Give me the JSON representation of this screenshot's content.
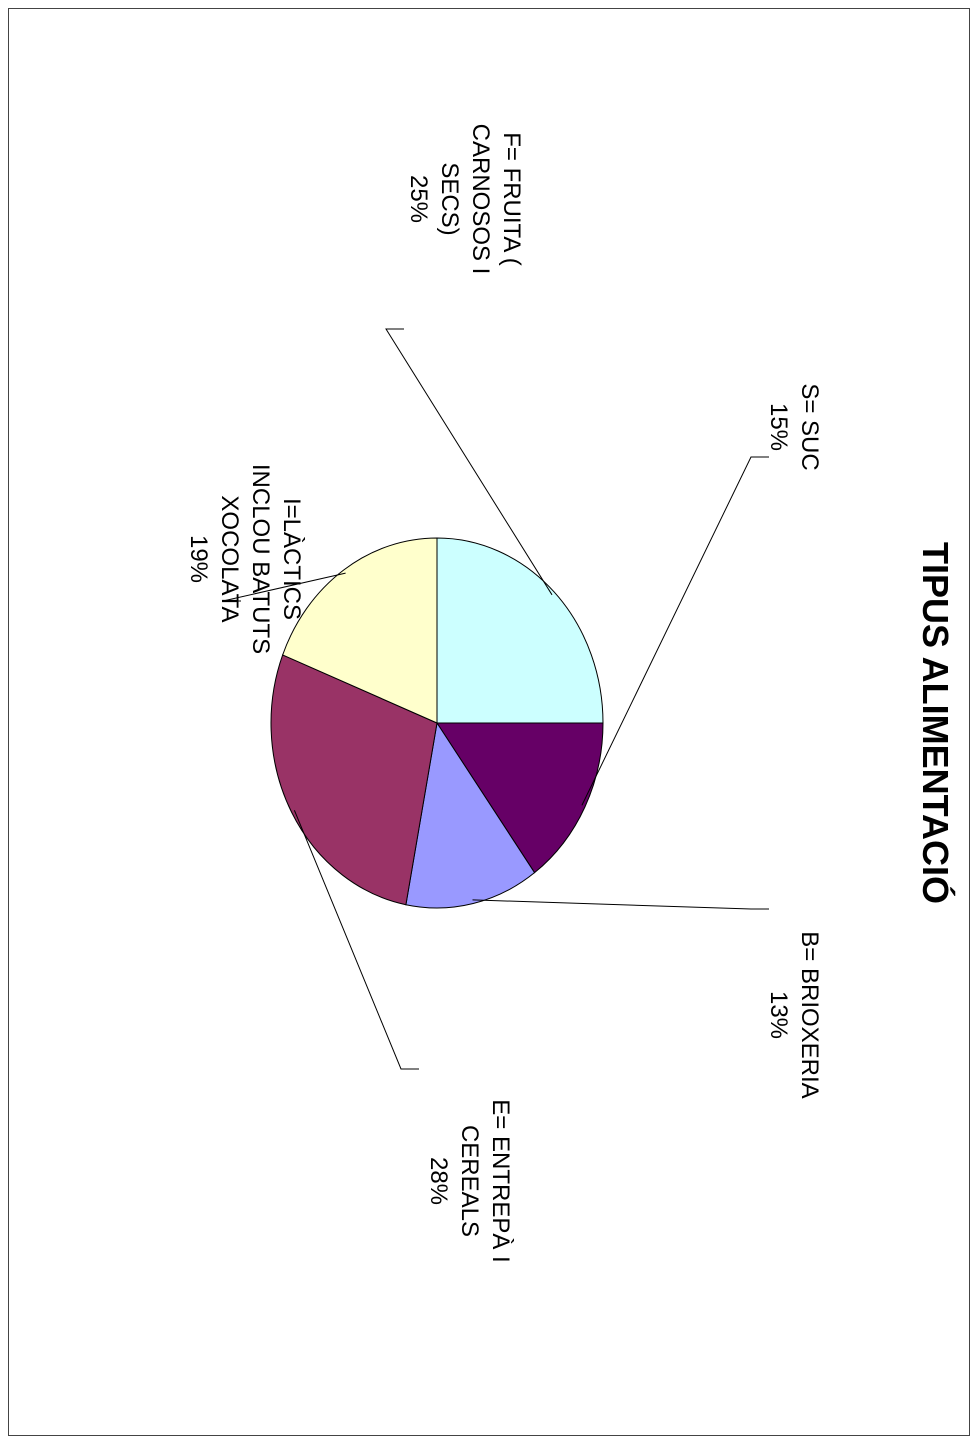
{
  "chart_data": {
    "type": "pie",
    "title": "TIPUS ALIMENTACIÓ",
    "slices": [
      {
        "key": "suc",
        "label_lines": [
          "S= SUC",
          "15%"
        ],
        "value": 15,
        "color": "#660066"
      },
      {
        "key": "brioxeria",
        "label_lines": [
          "B= BRIOXERIA",
          "13%"
        ],
        "value": 13,
        "color": "#9999FF"
      },
      {
        "key": "entrepa",
        "label_lines": [
          "E= ENTREPÀ I",
          "CEREALS",
          "28%"
        ],
        "value": 28,
        "color": "#993366"
      },
      {
        "key": "lactics",
        "label_lines": [
          "I=LÀCTICS",
          "INCLOU BATUTS",
          "XOCOLATA",
          "19%"
        ],
        "value": 19,
        "color": "#FFFFCC"
      },
      {
        "key": "fruita",
        "label_lines": [
          "F= FRUITA (",
          "CARNOSOS I",
          "SECS)",
          "25%"
        ],
        "value": 25,
        "color": "#CCFFFF"
      }
    ],
    "orientation": "rotated 90° clockwise",
    "legend": "none",
    "data_labels": "outside with leader lines"
  }
}
